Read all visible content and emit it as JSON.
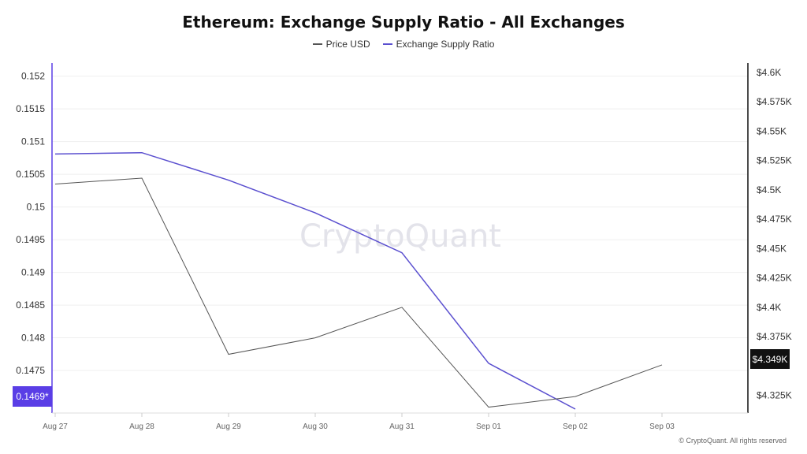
{
  "title": "Ethereum: Exchange Supply Ratio - All Exchanges",
  "watermark": "CryptoQuant",
  "footer": "© CryptoQuant. All rights reserved",
  "colors": {
    "price": "#555555",
    "ratio": "#5a4fcf",
    "price_badge_bg": "#111111",
    "ratio_badge_bg": "#5a3ee6",
    "grid": "#efefef"
  },
  "legend": [
    {
      "name": "Price USD",
      "color": "#555555"
    },
    {
      "name": "Exchange Supply Ratio",
      "color": "#5a4fcf"
    }
  ],
  "left_badge": "0.1469*",
  "right_badge": "$4.349K",
  "chart_data": {
    "type": "line",
    "title": "Ethereum: Exchange Supply Ratio - All Exchanges",
    "x": [
      "Aug 27",
      "Aug 28",
      "Aug 29",
      "Aug 30",
      "Aug 31",
      "Sep 01",
      "Sep 02",
      "Sep 03"
    ],
    "y_left": {
      "ticks": [
        "0.152",
        "0.1515",
        "0.151",
        "0.1505",
        "0.15",
        "0.1495",
        "0.149",
        "0.1485",
        "0.148",
        "0.1475"
      ],
      "tick_values": [
        0.152,
        0.1515,
        0.151,
        0.1505,
        0.15,
        0.1495,
        0.149,
        0.1485,
        0.148,
        0.1475
      ],
      "range": [
        0.14685,
        0.1522
      ]
    },
    "y_right": {
      "ticks": [
        "$4.6K",
        "$4.575K",
        "$4.55K",
        "$4.525K",
        "$4.5K",
        "$4.475K",
        "$4.45K",
        "$4.425K",
        "$4.4K",
        "$4.375K",
        "$4.325K"
      ],
      "tick_values": [
        4600,
        4575,
        4550,
        4525,
        4500,
        4475,
        4450,
        4425,
        4400,
        4375,
        4325
      ],
      "range": [
        4310,
        4608
      ]
    },
    "series": [
      {
        "name": "Exchange Supply Ratio",
        "axis": "left",
        "values": [
          0.15081,
          0.15083,
          0.15041,
          0.14991,
          0.1493,
          0.14761,
          0.14691,
          null
        ]
      },
      {
        "name": "Price USD",
        "axis": "right",
        "values": [
          4505,
          4510,
          4360,
          4374,
          4400,
          4315,
          4324,
          4351
        ]
      }
    ],
    "grid": true,
    "legend_position": "top-center"
  }
}
